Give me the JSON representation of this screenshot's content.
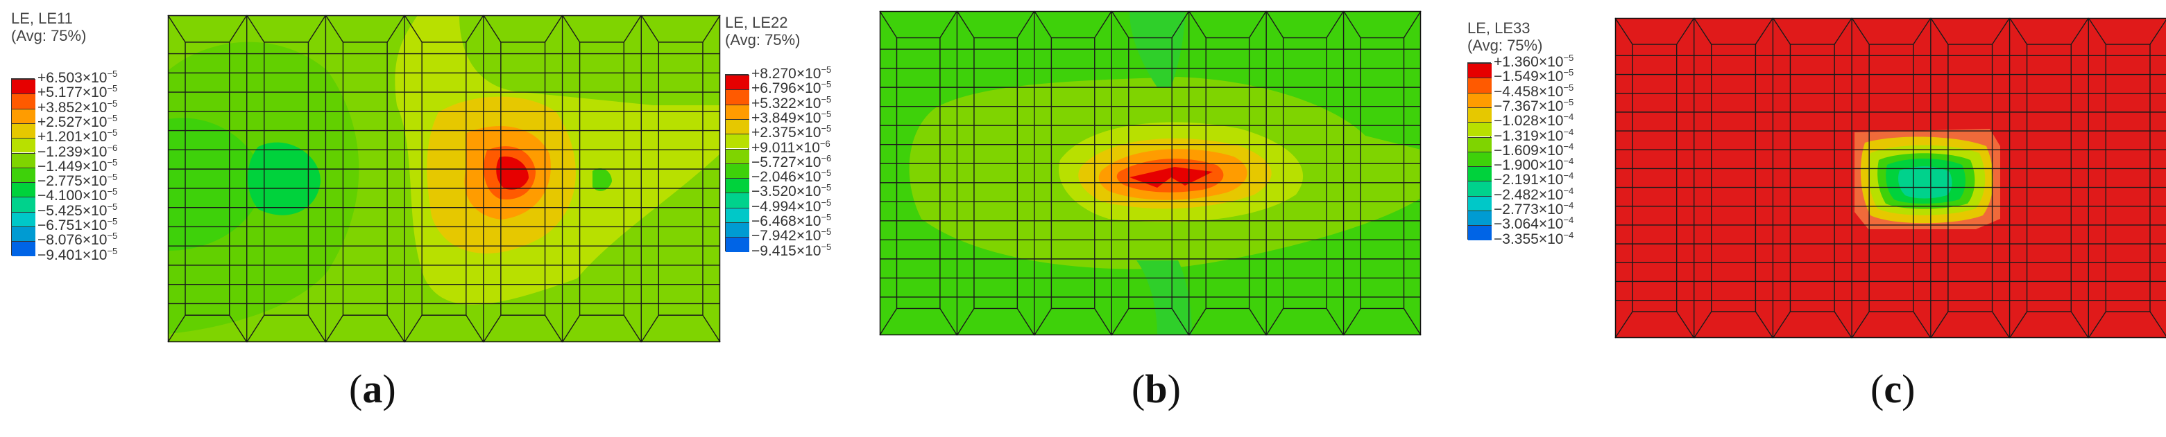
{
  "panels": [
    {
      "id": "a",
      "label": "a",
      "legend_title": "LE, LE11",
      "legend_avg": "(Avg: 75%)",
      "entries": [
        {
          "sign": "+",
          "mant": "6.503",
          "exp": "-5"
        },
        {
          "sign": "+",
          "mant": "5.177",
          "exp": "-5"
        },
        {
          "sign": "+",
          "mant": "3.852",
          "exp": "-5"
        },
        {
          "sign": "+",
          "mant": "2.527",
          "exp": "-5"
        },
        {
          "sign": "+",
          "mant": "1.201",
          "exp": "-5"
        },
        {
          "sign": "−",
          "mant": "1.239",
          "exp": "-6"
        },
        {
          "sign": "−",
          "mant": "1.449",
          "exp": "-5"
        },
        {
          "sign": "−",
          "mant": "2.775",
          "exp": "-5"
        },
        {
          "sign": "−",
          "mant": "4.100",
          "exp": "-5"
        },
        {
          "sign": "−",
          "mant": "5.425",
          "exp": "-5"
        },
        {
          "sign": "−",
          "mant": "6.751",
          "exp": "-5"
        },
        {
          "sign": "−",
          "mant": "8.076",
          "exp": "-5"
        },
        {
          "sign": "−",
          "mant": "9.401",
          "exp": "-5"
        }
      ],
      "background_color": "#7fd400"
    },
    {
      "id": "b",
      "label": "b",
      "legend_title": "LE, LE22",
      "legend_avg": "(Avg: 75%)",
      "entries": [
        {
          "sign": "+",
          "mant": "8.270",
          "exp": "-5"
        },
        {
          "sign": "+",
          "mant": "6.796",
          "exp": "-5"
        },
        {
          "sign": "+",
          "mant": "5.322",
          "exp": "-5"
        },
        {
          "sign": "+",
          "mant": "3.849",
          "exp": "-5"
        },
        {
          "sign": "+",
          "mant": "2.375",
          "exp": "-5"
        },
        {
          "sign": "+",
          "mant": "9.011",
          "exp": "-6"
        },
        {
          "sign": "−",
          "mant": "5.727",
          "exp": "-6"
        },
        {
          "sign": "−",
          "mant": "2.046",
          "exp": "-5"
        },
        {
          "sign": "−",
          "mant": "3.520",
          "exp": "-5"
        },
        {
          "sign": "−",
          "mant": "4.994",
          "exp": "-5"
        },
        {
          "sign": "−",
          "mant": "6.468",
          "exp": "-5"
        },
        {
          "sign": "−",
          "mant": "7.942",
          "exp": "-5"
        },
        {
          "sign": "−",
          "mant": "9.415",
          "exp": "-5"
        }
      ],
      "background_color": "#3ed10a"
    },
    {
      "id": "c",
      "label": "c",
      "legend_title": "LE, LE33",
      "legend_avg": "(Avg: 75%)",
      "entries": [
        {
          "sign": "+",
          "mant": "1.360",
          "exp": "-5"
        },
        {
          "sign": "−",
          "mant": "1.549",
          "exp": "-5"
        },
        {
          "sign": "−",
          "mant": "4.458",
          "exp": "-5"
        },
        {
          "sign": "−",
          "mant": "7.367",
          "exp": "-5"
        },
        {
          "sign": "−",
          "mant": "1.028",
          "exp": "-4"
        },
        {
          "sign": "−",
          "mant": "1.319",
          "exp": "-4"
        },
        {
          "sign": "−",
          "mant": "1.609",
          "exp": "-4"
        },
        {
          "sign": "−",
          "mant": "1.900",
          "exp": "-4"
        },
        {
          "sign": "−",
          "mant": "2.191",
          "exp": "-4"
        },
        {
          "sign": "−",
          "mant": "2.482",
          "exp": "-4"
        },
        {
          "sign": "−",
          "mant": "2.773",
          "exp": "-4"
        },
        {
          "sign": "−",
          "mant": "3.064",
          "exp": "-4"
        },
        {
          "sign": "−",
          "mant": "3.355",
          "exp": "-4"
        }
      ],
      "background_color": "#e01a1a"
    }
  ],
  "colormap": [
    "#e60000",
    "#ff5a00",
    "#ff9c00",
    "#e6c800",
    "#b8e000",
    "#7fd400",
    "#3ed10a",
    "#00d23c",
    "#00d28c",
    "#00c8c8",
    "#009bd2",
    "#0064e6",
    "#0000e6"
  ]
}
